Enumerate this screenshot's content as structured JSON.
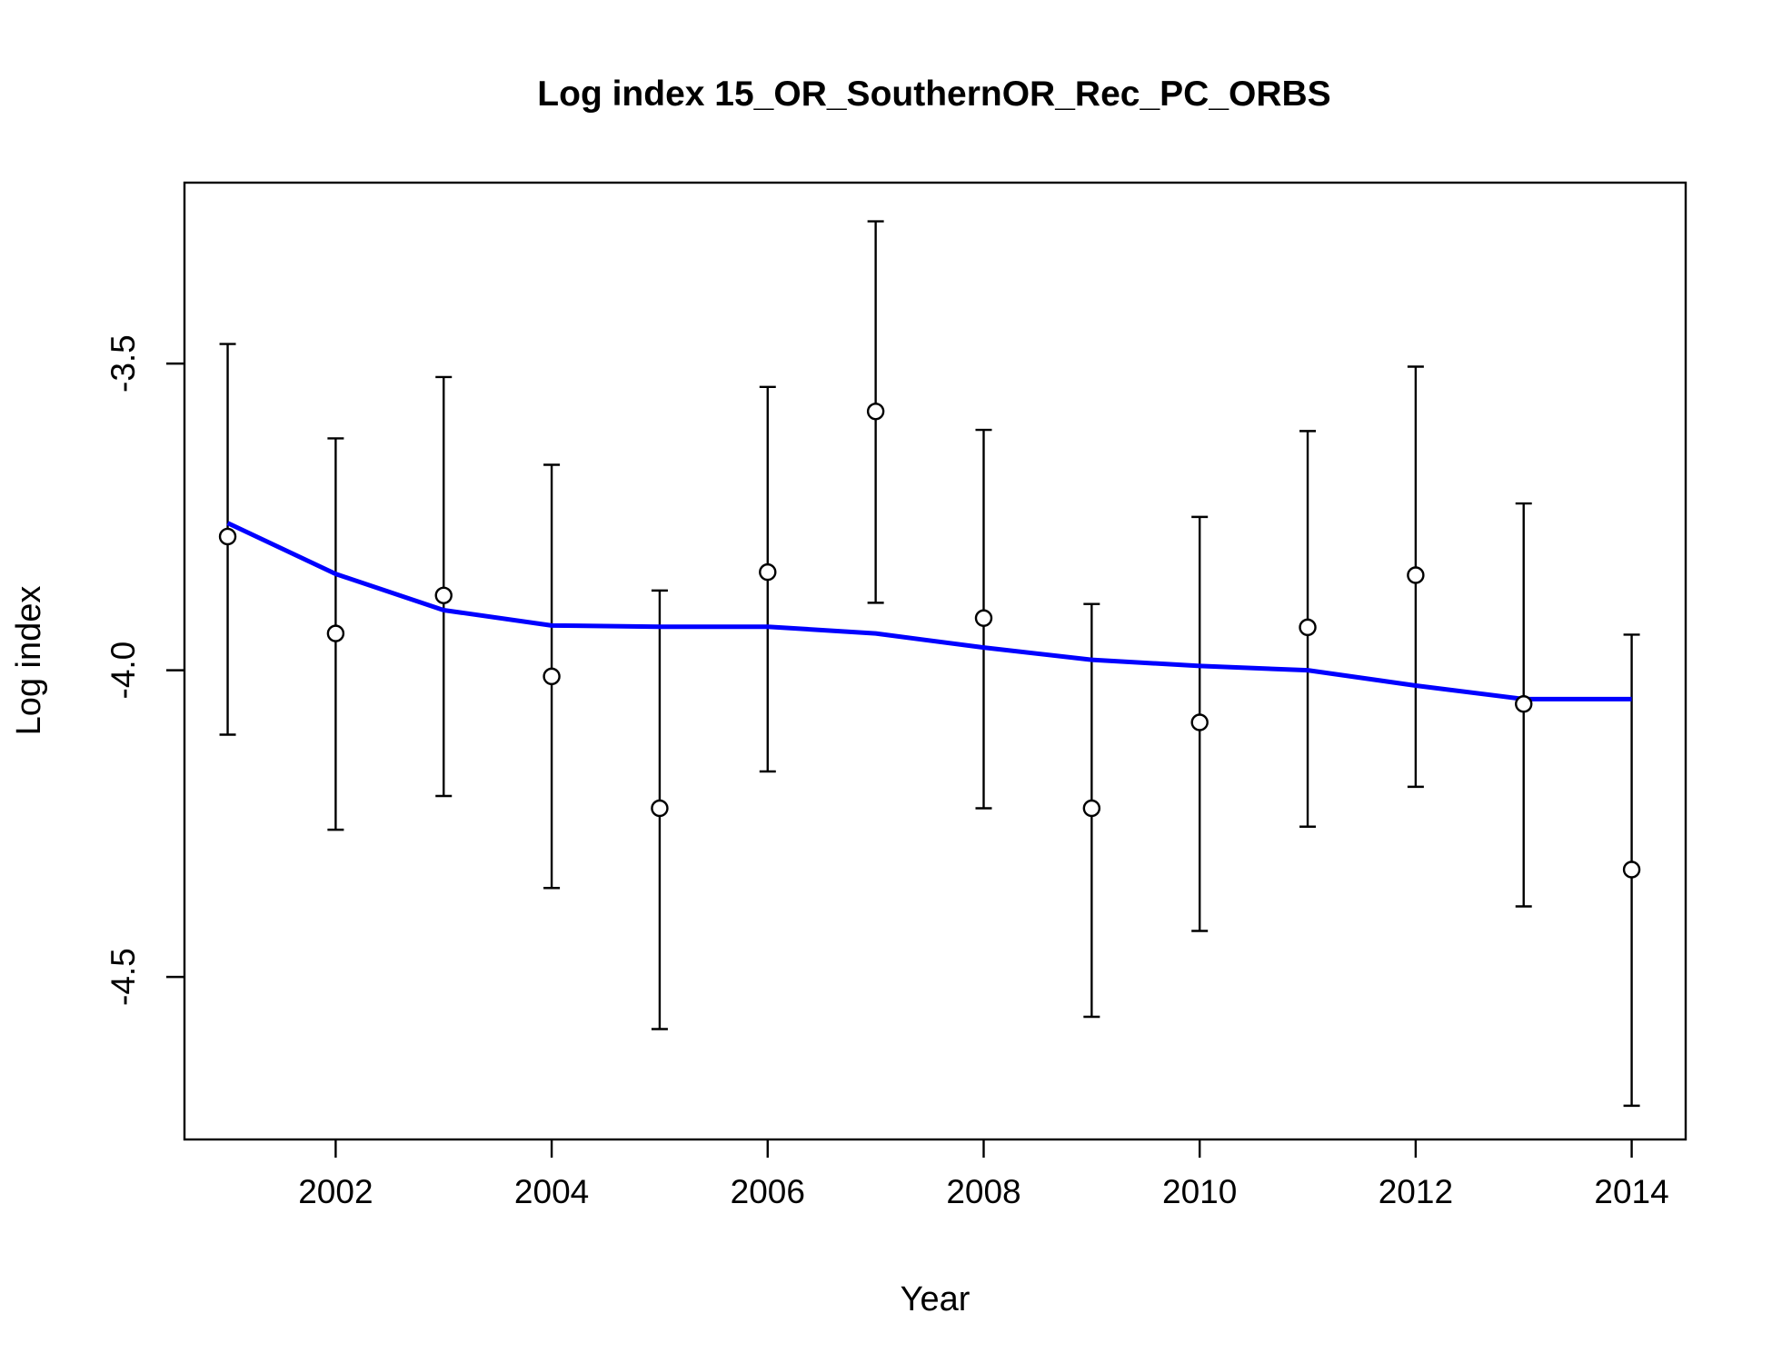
{
  "chart_data": {
    "type": "scatter",
    "title": "Log index 15_OR_SouthernOR_Rec_PC_ORBS",
    "xlabel": "Year",
    "ylabel": "Log index",
    "xlim": [
      2000.6,
      2014.5
    ],
    "ylim": [
      -4.765,
      -3.205
    ],
    "x_ticks": [
      2002,
      2004,
      2006,
      2008,
      2010,
      2012,
      2014
    ],
    "x_tick_labels": [
      "2002",
      "2004",
      "2006",
      "2008",
      "2010",
      "2012",
      "2014"
    ],
    "y_ticks": [
      -3.5,
      -4.0,
      -4.5
    ],
    "y_tick_labels": [
      "-3.5",
      "-4.0",
      "-4.5"
    ],
    "grid": false,
    "legend": "none",
    "observed": {
      "x": [
        2001,
        2002,
        2003,
        2004,
        2005,
        2006,
        2007,
        2008,
        2009,
        2010,
        2011,
        2012,
        2013,
        2014
      ],
      "y": [
        -3.782,
        -3.94,
        -3.878,
        -4.01,
        -4.225,
        -3.84,
        -3.578,
        -3.915,
        -4.225,
        -4.085,
        -3.93,
        -3.845,
        -4.055,
        -4.325
      ],
      "lower": [
        -4.105,
        -4.26,
        -4.205,
        -4.355,
        -4.585,
        -4.165,
        -3.89,
        -4.225,
        -4.565,
        -4.425,
        -4.255,
        -4.19,
        -4.385,
        -4.71
      ],
      "upper": [
        -3.468,
        -3.622,
        -3.522,
        -3.665,
        -3.87,
        -3.538,
        -3.268,
        -3.608,
        -3.892,
        -3.75,
        -3.61,
        -3.505,
        -3.728,
        -3.942
      ]
    },
    "expected": {
      "x": [
        2001,
        2002,
        2003,
        2004,
        2005,
        2006,
        2007,
        2008,
        2009,
        2010,
        2011,
        2012,
        2013,
        2014
      ],
      "y": [
        -3.76,
        -3.843,
        -3.902,
        -3.927,
        -3.929,
        -3.929,
        -3.94,
        -3.963,
        -3.983,
        -3.993,
        -4.0,
        -4.025,
        -4.047,
        -4.047
      ],
      "color": "#0000FF"
    }
  }
}
